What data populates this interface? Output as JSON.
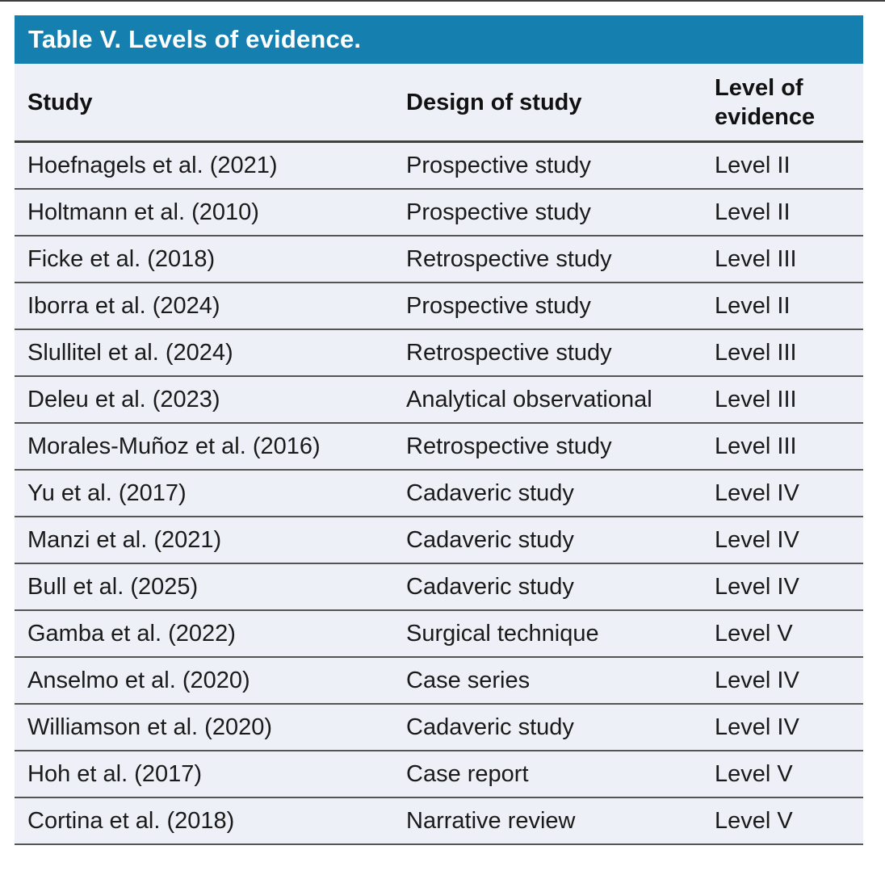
{
  "table": {
    "title": "Table V. Levels of evidence.",
    "columns": {
      "study": "Study",
      "design": "Design of study",
      "level": "Level of evidence"
    },
    "rows": [
      {
        "study": "Hoefnagels et al. (2021)",
        "design": "Prospective study",
        "level": "Level II"
      },
      {
        "study": "Holtmann et al. (2010)",
        "design": "Prospective study",
        "level": "Level II"
      },
      {
        "study": "Ficke et al. (2018)",
        "design": "Retrospective study",
        "level": "Level III"
      },
      {
        "study": "Iborra et al. (2024)",
        "design": "Prospective study",
        "level": "Level II"
      },
      {
        "study": "Slullitel et al. (2024)",
        "design": "Retrospective study",
        "level": "Level III"
      },
      {
        "study": "Deleu et al. (2023)",
        "design": "Analytical observational",
        "level": "Level III"
      },
      {
        "study": "Morales-Muñoz et al. (2016)",
        "design": "Retrospective study",
        "level": "Level III"
      },
      {
        "study": "Yu et al. (2017)",
        "design": "Cadaveric study",
        "level": "Level IV"
      },
      {
        "study": "Manzi et al. (2021)",
        "design": "Cadaveric study",
        "level": "Level IV"
      },
      {
        "study": "Bull et al. (2025)",
        "design": "Cadaveric study",
        "level": "Level IV"
      },
      {
        "study": "Gamba et al. (2022)",
        "design": "Surgical technique",
        "level": "Level V"
      },
      {
        "study": "Anselmo et al. (2020)",
        "design": "Case series",
        "level": "Level IV"
      },
      {
        "study": "Williamson et al. (2020)",
        "design": "Cadaveric study",
        "level": "Level IV"
      },
      {
        "study": "Hoh et al. (2017)",
        "design": "Case report",
        "level": "Level V"
      },
      {
        "study": "Cortina et al. (2018)",
        "design": "Narrative review",
        "level": "Level V"
      }
    ],
    "colors": {
      "title_bar_bg": "#1580AF",
      "title_text": "#FFFFFF",
      "row_bg": "#EDF0F6",
      "row_divider": "#555555",
      "header_rule": "#404040",
      "top_rule": "#3D3D3D",
      "body_text": "#1A1A1A"
    }
  }
}
